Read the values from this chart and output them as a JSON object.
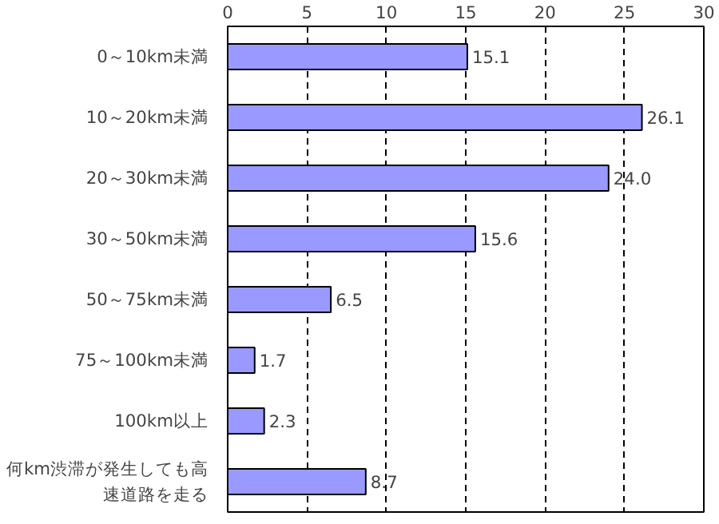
{
  "chart_data": {
    "type": "bar",
    "orientation": "horizontal",
    "categories": [
      "0～10km未満",
      "10～20km未満",
      "20～30km未満",
      "30～50km未満",
      "50～75km未満",
      "75～100km未満",
      "100km以上",
      "何km渋滞が発生しても高速道路を走る"
    ],
    "values": [
      15.1,
      26.1,
      24.0,
      15.6,
      6.5,
      1.7,
      2.3,
      8.7
    ],
    "value_labels": [
      "15.1",
      "26.1",
      "24.0",
      "15.6",
      "6.5",
      "1.7",
      "2.3",
      "8.7"
    ],
    "color": "#9999ff",
    "xlim": [
      0,
      30
    ],
    "xticks": [
      0,
      5,
      10,
      15,
      20,
      25,
      30
    ],
    "grid": "x"
  }
}
